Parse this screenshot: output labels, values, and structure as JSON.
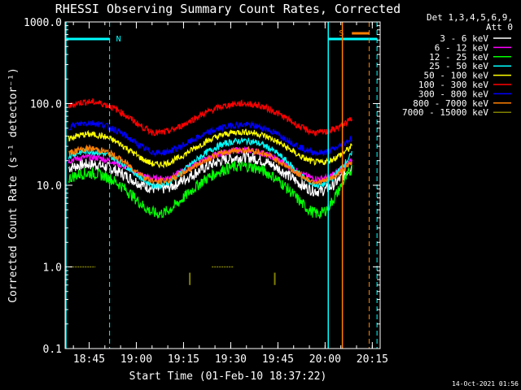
{
  "chart_data": {
    "type": "line",
    "title": "RHESSI Observing Summary Count Rates, Corrected",
    "xlabel": "Start Time (01-Feb-10 18:37:22)",
    "ylabel": "Corrected Count Rate (s⁻¹ detector⁻¹)",
    "y_scale": "log",
    "ylim": [
      0.1,
      1000
    ],
    "xlim": [
      "18:37:22",
      "20:17:30"
    ],
    "y_tick_labels": [
      "0.1",
      "1.0",
      "10.0",
      "100.0",
      "1000.0"
    ],
    "x_tick_labels": [
      "18:45",
      "19:00",
      "19:15",
      "19:30",
      "19:45",
      "20:00",
      "20:15"
    ],
    "legend_header": [
      "Det 1,3,4,5,6,9,",
      "Att 0"
    ],
    "legend_position": "right",
    "timestamp": "14-Oct-2021 01:56",
    "annotations": [
      {
        "label": "N",
        "color": "#00ffff",
        "start": "18:37:22",
        "end": "18:51:30"
      },
      {
        "label": "S",
        "color": "#ff8000",
        "start": "20:05:30",
        "end": "20:14:00"
      }
    ],
    "series": [
      {
        "name": "3 - 6 keV",
        "color": "#ffffff",
        "hump1": 18,
        "valley1": 9,
        "hump2": 22,
        "valley2": 8.5,
        "end": 17
      },
      {
        "name": "6 - 12 keV",
        "color": "#ff00ff",
        "hump1": 22,
        "valley1": 12,
        "hump2": 27,
        "valley2": 12,
        "end": 20
      },
      {
        "name": "12 - 25 keV",
        "color": "#00ff00",
        "hump1": 14,
        "valley1": 4.5,
        "hump2": 17,
        "valley2": 4.5,
        "end": 16
      },
      {
        "name": "25 - 50 keV",
        "color": "#00ffff",
        "hump1": 26,
        "valley1": 10,
        "hump2": 35,
        "valley2": 10,
        "end": 24
      },
      {
        "name": "50 - 100 keV",
        "color": "#ffff00",
        "hump1": 42,
        "valley1": 18,
        "hump2": 45,
        "valley2": 19,
        "end": 30
      },
      {
        "name": "100 - 300 keV",
        "color": "#ff0000",
        "hump1": 105,
        "valley1": 44,
        "hump2": 100,
        "valley2": 44,
        "end": 65
      },
      {
        "name": "300 - 800 keV",
        "color": "#0000ff",
        "hump1": 58,
        "valley1": 25,
        "hump2": 55,
        "valley2": 25,
        "end": 38
      },
      {
        "name": "800 - 7000 keV",
        "color": "#ff8000",
        "hump1": 28,
        "valley1": 11,
        "hump2": 27,
        "valley2": 11,
        "end": 19
      },
      {
        "name": "7000 - 15000 keV",
        "color": "#808000",
        "hump1": 1.0,
        "valley1": 0.7,
        "hump2": 1.0,
        "valley2": 0.7,
        "end": 1.0
      }
    ]
  }
}
